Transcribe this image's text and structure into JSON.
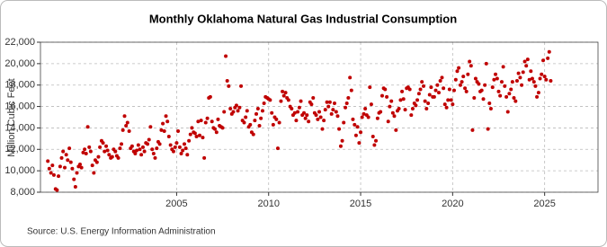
{
  "chart_data": {
    "type": "scatter",
    "title": "Monthly Oklahoma Natural Gas Industrial Consumption",
    "y_label": "Million Cubic Feet",
    "source": "Source: U.S. Energy Information Administration",
    "color": "#c00000",
    "grid": true,
    "xlim": [
      1997.6,
      2027.9
    ],
    "xticks": [
      2005,
      2010,
      2015,
      2020,
      2025
    ],
    "ylim": [
      8000,
      22000
    ],
    "yticks": [
      {
        "value": 8000,
        "label": "8,000"
      },
      {
        "value": 10000,
        "label": "10,000"
      },
      {
        "value": 12000,
        "label": "12,000"
      },
      {
        "value": 14000,
        "label": "14,000"
      },
      {
        "value": 16000,
        "label": "16,000"
      },
      {
        "value": 18000,
        "label": "18,000"
      },
      {
        "value": 20000,
        "label": "20,000"
      },
      {
        "value": 22000,
        "label": "22,000"
      }
    ],
    "x": [
      1998,
      1998.08,
      1998.17,
      1998.25,
      1998.33,
      1998.42,
      1998.5,
      1998.58,
      1998.67,
      1998.75,
      1998.83,
      1998.92,
      1999,
      1999.08,
      1999.17,
      1999.25,
      1999.33,
      1999.42,
      1999.5,
      1999.58,
      1999.67,
      1999.75,
      1999.83,
      1999.92,
      2000,
      2000.08,
      2000.17,
      2000.25,
      2000.33,
      2000.42,
      2000.5,
      2000.58,
      2000.67,
      2000.75,
      2000.83,
      2000.92,
      2001,
      2001.08,
      2001.17,
      2001.25,
      2001.33,
      2001.42,
      2001.5,
      2001.58,
      2001.67,
      2001.75,
      2001.83,
      2001.92,
      2002,
      2002.08,
      2002.17,
      2002.25,
      2002.33,
      2002.42,
      2002.5,
      2002.58,
      2002.67,
      2002.75,
      2002.83,
      2002.92,
      2003,
      2003.08,
      2003.17,
      2003.25,
      2003.33,
      2003.42,
      2003.5,
      2003.58,
      2003.67,
      2003.75,
      2003.83,
      2003.92,
      2004,
      2004.08,
      2004.17,
      2004.25,
      2004.33,
      2004.42,
      2004.5,
      2004.58,
      2004.67,
      2004.75,
      2004.83,
      2004.92,
      2005,
      2005.08,
      2005.17,
      2005.25,
      2005.33,
      2005.42,
      2005.5,
      2005.58,
      2005.67,
      2005.75,
      2005.83,
      2005.92,
      2006,
      2006.08,
      2006.17,
      2006.25,
      2006.33,
      2006.42,
      2006.5,
      2006.58,
      2006.67,
      2006.75,
      2006.83,
      2006.92,
      2007,
      2007.08,
      2007.17,
      2007.25,
      2007.33,
      2007.42,
      2007.5,
      2007.58,
      2007.67,
      2007.75,
      2007.83,
      2007.92,
      2008,
      2008.08,
      2008.17,
      2008.25,
      2008.33,
      2008.42,
      2008.5,
      2008.58,
      2008.67,
      2008.75,
      2008.83,
      2008.92,
      2009,
      2009.08,
      2009.17,
      2009.25,
      2009.33,
      2009.42,
      2009.5,
      2009.58,
      2009.67,
      2009.75,
      2009.83,
      2009.92,
      2010,
      2010.08,
      2010.17,
      2010.25,
      2010.33,
      2010.42,
      2010.5,
      2010.58,
      2010.67,
      2010.75,
      2010.83,
      2010.92,
      2011,
      2011.08,
      2011.17,
      2011.25,
      2011.33,
      2011.42,
      2011.5,
      2011.58,
      2011.67,
      2011.75,
      2011.83,
      2011.92,
      2012,
      2012.08,
      2012.17,
      2012.25,
      2012.33,
      2012.42,
      2012.5,
      2012.58,
      2012.67,
      2012.75,
      2012.83,
      2012.92,
      2013,
      2013.08,
      2013.17,
      2013.25,
      2013.33,
      2013.42,
      2013.5,
      2013.58,
      2013.67,
      2013.75,
      2013.83,
      2013.92,
      2014,
      2014.08,
      2014.17,
      2014.25,
      2014.33,
      2014.42,
      2014.5,
      2014.58,
      2014.67,
      2014.75,
      2014.83,
      2014.92,
      2015,
      2015.08,
      2015.17,
      2015.25,
      2015.33,
      2015.42,
      2015.5,
      2015.58,
      2015.67,
      2015.75,
      2015.83,
      2015.92,
      2016,
      2016.08,
      2016.17,
      2016.25,
      2016.33,
      2016.42,
      2016.5,
      2016.58,
      2016.67,
      2016.75,
      2016.83,
      2016.92,
      2017,
      2017.08,
      2017.17,
      2017.25,
      2017.33,
      2017.42,
      2017.5,
      2017.58,
      2017.67,
      2017.75,
      2017.83,
      2017.92,
      2018,
      2018.08,
      2018.17,
      2018.25,
      2018.33,
      2018.42,
      2018.5,
      2018.58,
      2018.67,
      2018.75,
      2018.83,
      2018.92,
      2019,
      2019.08,
      2019.17,
      2019.25,
      2019.33,
      2019.42,
      2019.5,
      2019.58,
      2019.67,
      2019.75,
      2019.83,
      2019.92,
      2020,
      2020.08,
      2020.17,
      2020.25,
      2020.33,
      2020.42,
      2020.5,
      2020.58,
      2020.67,
      2020.75,
      2020.83,
      2020.92,
      2021,
      2021.08,
      2021.17,
      2021.25,
      2021.33,
      2021.42,
      2021.5,
      2021.58,
      2021.67,
      2021.75,
      2021.83,
      2021.92,
      2022,
      2022.08,
      2022.17,
      2022.25,
      2022.33,
      2022.42,
      2022.5,
      2022.58,
      2022.67,
      2022.75,
      2022.83,
      2022.92,
      2023,
      2023.08,
      2023.17,
      2023.25,
      2023.33,
      2023.42,
      2023.5,
      2023.58,
      2023.67,
      2023.75,
      2023.83,
      2023.92,
      2024,
      2024.08,
      2024.17,
      2024.25,
      2024.33,
      2024.42,
      2024.5,
      2024.58,
      2024.67,
      2024.75,
      2024.83,
      2024.92,
      2025,
      2025.08,
      2025.17,
      2025.25,
      2025.33
    ],
    "values": [
      10900,
      10200,
      9800,
      10500,
      9600,
      8300,
      8200,
      9500,
      10400,
      11200,
      11800,
      10300,
      11500,
      11000,
      12100,
      10800,
      10200,
      9200,
      8500,
      9800,
      10400,
      10600,
      10300,
      11700,
      12000,
      11600,
      14100,
      12200,
      11800,
      10500,
      9800,
      11000,
      10800,
      11300,
      12200,
      12800,
      12600,
      11800,
      12300,
      11900,
      11500,
      11200,
      11300,
      12000,
      11800,
      11400,
      11200,
      12100,
      12500,
      13800,
      15100,
      14200,
      14500,
      13700,
      12100,
      12300,
      11800,
      11600,
      11900,
      12400,
      12000,
      11500,
      12200,
      11800,
      12600,
      12500,
      12900,
      14100,
      12000,
      11600,
      11200,
      12100,
      12700,
      12500,
      13800,
      14400,
      13700,
      15100,
      14600,
      13200,
      12400,
      12000,
      11800,
      12200,
      12600,
      13700,
      12200,
      11600,
      11900,
      12500,
      12100,
      11500,
      12800,
      13400,
      14000,
      13600,
      13500,
      13200,
      14600,
      13300,
      14700,
      13100,
      11200,
      14500,
      14900,
      16800,
      16900,
      14600,
      14000,
      13900,
      13600,
      14800,
      14200,
      14100,
      14000,
      15500,
      20700,
      18400,
      17900,
      15800,
      15300,
      15500,
      15900,
      16100,
      15600,
      15900,
      17900,
      14700,
      14500,
      15000,
      15600,
      14100,
      14300,
      13600,
      13400,
      14700,
      15300,
      15800,
      14200,
      14900,
      15600,
      16300,
      16900,
      16800,
      16700,
      16600,
      15400,
      14300,
      15000,
      14800,
      12100,
      14500,
      16500,
      17400,
      17000,
      17300,
      16800,
      16600,
      16000,
      15800,
      15200,
      15400,
      14700,
      15500,
      15900,
      16500,
      15200,
      15400,
      14900,
      15200,
      14600,
      16400,
      16200,
      16800,
      15400,
      15200,
      14800,
      15500,
      15000,
      13900,
      14700,
      15700,
      16400,
      16000,
      16400,
      15300,
      15700,
      16300,
      15500,
      15100,
      13900,
      12300,
      12800,
      14500,
      15900,
      16300,
      16800,
      18700,
      17500,
      14800,
      14300,
      13300,
      14100,
      12600,
      13600,
      15000,
      15300,
      15800,
      15200,
      15000,
      17800,
      16200,
      13200,
      12400,
      12800,
      14900,
      15400,
      15500,
      17000,
      17700,
      17600,
      16900,
      14600,
      16000,
      16500,
      15400,
      15100,
      13800,
      15600,
      15800,
      16600,
      17400,
      16700,
      15700,
      17700,
      17800,
      17600,
      15200,
      15800,
      16300,
      16100,
      16600,
      17200,
      17600,
      18300,
      17900,
      16500,
      15800,
      16300,
      17100,
      17800,
      16900,
      16900,
      17500,
      18000,
      17300,
      18400,
      18700,
      17700,
      16200,
      15900,
      16600,
      17600,
      16600,
      16200,
      17500,
      18500,
      19300,
      19600,
      18000,
      18300,
      18800,
      17700,
      17400,
      19000,
      20200,
      19800,
      13800,
      16800,
      18600,
      18300,
      18100,
      17400,
      17500,
      16700,
      18000,
      20000,
      13900,
      16300,
      15800,
      17800,
      18500,
      19000,
      18600,
      17400,
      17000,
      18300,
      19700,
      17900,
      16900,
      15500,
      17200,
      17600,
      18300,
      16800,
      16500,
      18400,
      19100,
      18700,
      18000,
      19200,
      20200,
      19800,
      20400,
      18500,
      19300,
      18600,
      18300,
      17900,
      16900,
      17300,
      18600,
      19000,
      20300,
      18800,
      18500,
      20500,
      21100,
      18400
    ]
  }
}
